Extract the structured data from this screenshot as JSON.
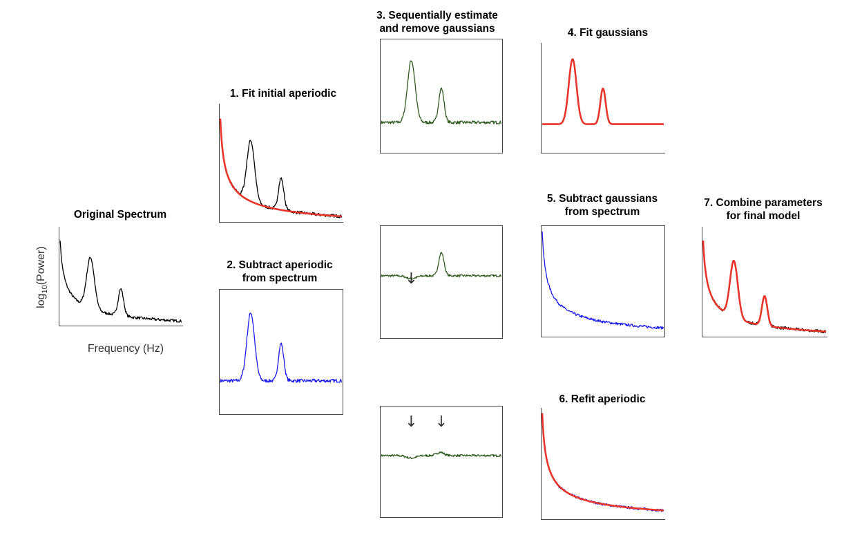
{
  "titles": {
    "original": "Original Spectrum",
    "step1": "1. Fit initial aperiodic",
    "step2_line1": "2. Subtract aperiodic",
    "step2_line2": "from spectrum",
    "step3_line1": "3. Sequentially estimate",
    "step3_line2": "and remove gaussians",
    "step4": "4. Fit gaussians",
    "step5_line1": "5. Subtract gaussians",
    "step5_line2": "from spectrum",
    "step6": "6. Refit aperiodic",
    "step7_line1": "7. Combine parameters",
    "step7_line2": "for final model"
  },
  "axes": {
    "xlabel": "Frequency (Hz)",
    "ylabel_prefix": "log",
    "ylabel_sub": "10",
    "ylabel_suffix": "(Power)"
  },
  "arrow_glyph": "↓",
  "colors": {
    "raw": "#000000",
    "fit": "#e8352a",
    "flattened": "#1a1aee",
    "residual": "#2e5a1c",
    "axis": "#444444"
  },
  "chart_data": [
    {
      "panel": "original",
      "type": "line",
      "series": [
        {
          "values": "spectrum",
          "color": "raw"
        }
      ],
      "axes": "left-bottom"
    },
    {
      "panel": "step1",
      "type": "line",
      "series": [
        {
          "values": "spectrum",
          "color": "raw"
        },
        {
          "values": "aperiodic-fit",
          "color": "fit"
        }
      ],
      "axes": "left-bottom"
    },
    {
      "panel": "step2",
      "type": "line",
      "series": [
        {
          "values": "flattened",
          "color": "flattened"
        }
      ],
      "axes": "box"
    },
    {
      "panel": "step3a",
      "type": "line",
      "series": [
        {
          "values": "flattened",
          "color": "residual"
        }
      ],
      "axes": "box"
    },
    {
      "panel": "step3b",
      "type": "line",
      "series": [
        {
          "values": "one-peak-removed",
          "color": "residual"
        }
      ],
      "axes": "box",
      "arrows": 1
    },
    {
      "panel": "step3c",
      "type": "line",
      "series": [
        {
          "values": "both-peaks-removed",
          "color": "residual"
        }
      ],
      "axes": "box",
      "arrows": 2
    },
    {
      "panel": "step4",
      "type": "line",
      "series": [
        {
          "values": "gaussian-fit",
          "color": "fit"
        }
      ],
      "axes": "left-bottom"
    },
    {
      "panel": "step5",
      "type": "line",
      "series": [
        {
          "values": "aperiodic-only",
          "color": "flattened"
        }
      ],
      "axes": "box"
    },
    {
      "panel": "step6",
      "type": "line",
      "series": [
        {
          "values": "aperiodic-only",
          "color": "flattened"
        },
        {
          "values": "aperiodic-fit",
          "color": "fit"
        }
      ],
      "axes": "left-bottom"
    },
    {
      "panel": "step7",
      "type": "line",
      "series": [
        {
          "values": "spectrum",
          "color": "raw"
        },
        {
          "values": "full-model",
          "color": "fit"
        }
      ],
      "axes": "left-bottom"
    }
  ]
}
